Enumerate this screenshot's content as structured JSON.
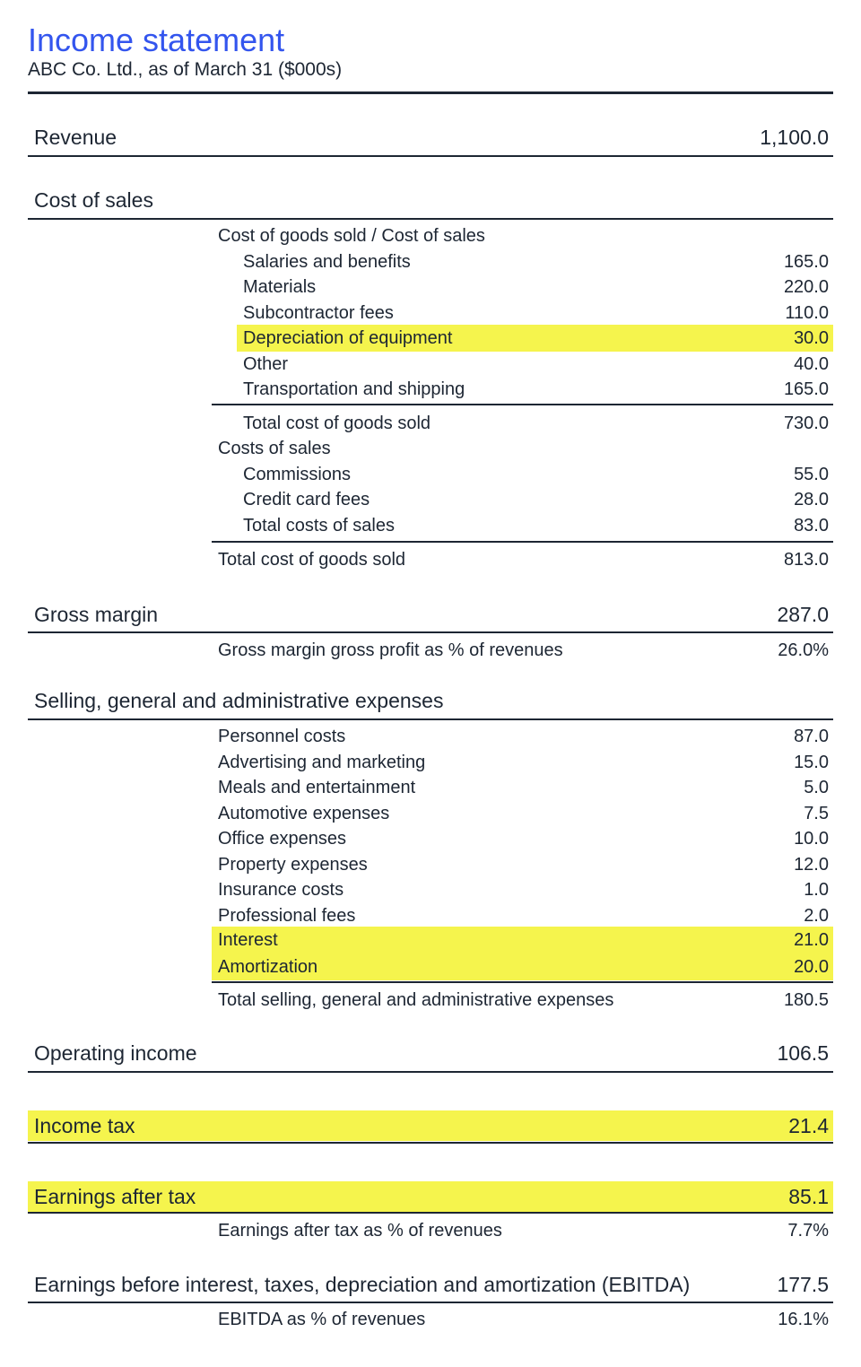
{
  "header": {
    "title": "Income statement",
    "subtitle": "ABC Co. Ltd., as of March 31 ($000s)"
  },
  "highlight_color": "#f5f44d",
  "title_color": "#3355ee",
  "rows": {
    "revenue": {
      "label": "Revenue",
      "value": "1,100.0"
    },
    "cost_of_sales_heading": {
      "label": "Cost of sales"
    },
    "cogs_heading": {
      "label": "Cost of goods sold / Cost of sales"
    },
    "salaries": {
      "label": "Salaries and benefits",
      "value": "165.0"
    },
    "materials": {
      "label": "Materials",
      "value": "220.0"
    },
    "subcontractor": {
      "label": "Subcontractor fees",
      "value": "110.0"
    },
    "depreciation": {
      "label": "Depreciation of equipment",
      "value": "30.0"
    },
    "other": {
      "label": "Other",
      "value": "40.0"
    },
    "transportation": {
      "label": "Transportation and shipping",
      "value": "165.0"
    },
    "total_cogs_sub": {
      "label": "Total cost of goods sold",
      "value": "730.0"
    },
    "costs_of_sales_heading": {
      "label": "Costs of sales"
    },
    "commissions": {
      "label": "Commissions",
      "value": "55.0"
    },
    "credit_card": {
      "label": "Credit card fees",
      "value": "28.0"
    },
    "total_costs_of_sales": {
      "label": "Total costs of sales",
      "value": "83.0"
    },
    "total_cogs": {
      "label": "Total cost of goods sold",
      "value": "813.0"
    },
    "gross_margin": {
      "label": "Gross margin",
      "value": "287.0"
    },
    "gross_margin_pct": {
      "label": "Gross margin gross profit as % of revenues",
      "value": "26.0%"
    },
    "sga_heading": {
      "label": "Selling, general and administrative expenses"
    },
    "personnel": {
      "label": "Personnel costs",
      "value": "87.0"
    },
    "advertising": {
      "label": "Advertising and marketing",
      "value": "15.0"
    },
    "meals": {
      "label": "Meals and entertainment",
      "value": "5.0"
    },
    "automotive": {
      "label": "Automotive expenses",
      "value": "7.5"
    },
    "office": {
      "label": "Office expenses",
      "value": "10.0"
    },
    "property": {
      "label": "Property expenses",
      "value": "12.0"
    },
    "insurance": {
      "label": "Insurance costs",
      "value": "1.0"
    },
    "professional": {
      "label": "Professional fees",
      "value": "2.0"
    },
    "interest": {
      "label": "Interest",
      "value": "21.0"
    },
    "amortization": {
      "label": "Amortization",
      "value": "20.0"
    },
    "total_sga": {
      "label": "Total selling, general and administrative expenses",
      "value": "180.5"
    },
    "operating_income": {
      "label": "Operating income",
      "value": "106.5"
    },
    "income_tax": {
      "label": "Income tax",
      "value": "21.4"
    },
    "earnings_after_tax": {
      "label": "Earnings after tax",
      "value": "85.1"
    },
    "eat_pct": {
      "label": "Earnings after tax as % of revenues",
      "value": "7.7%"
    },
    "ebitda": {
      "label": "Earnings before interest, taxes, depreciation and amortization (EBITDA)",
      "value": "177.5"
    },
    "ebitda_pct": {
      "label": "EBITDA as % of revenues",
      "value": "16.1%"
    }
  }
}
